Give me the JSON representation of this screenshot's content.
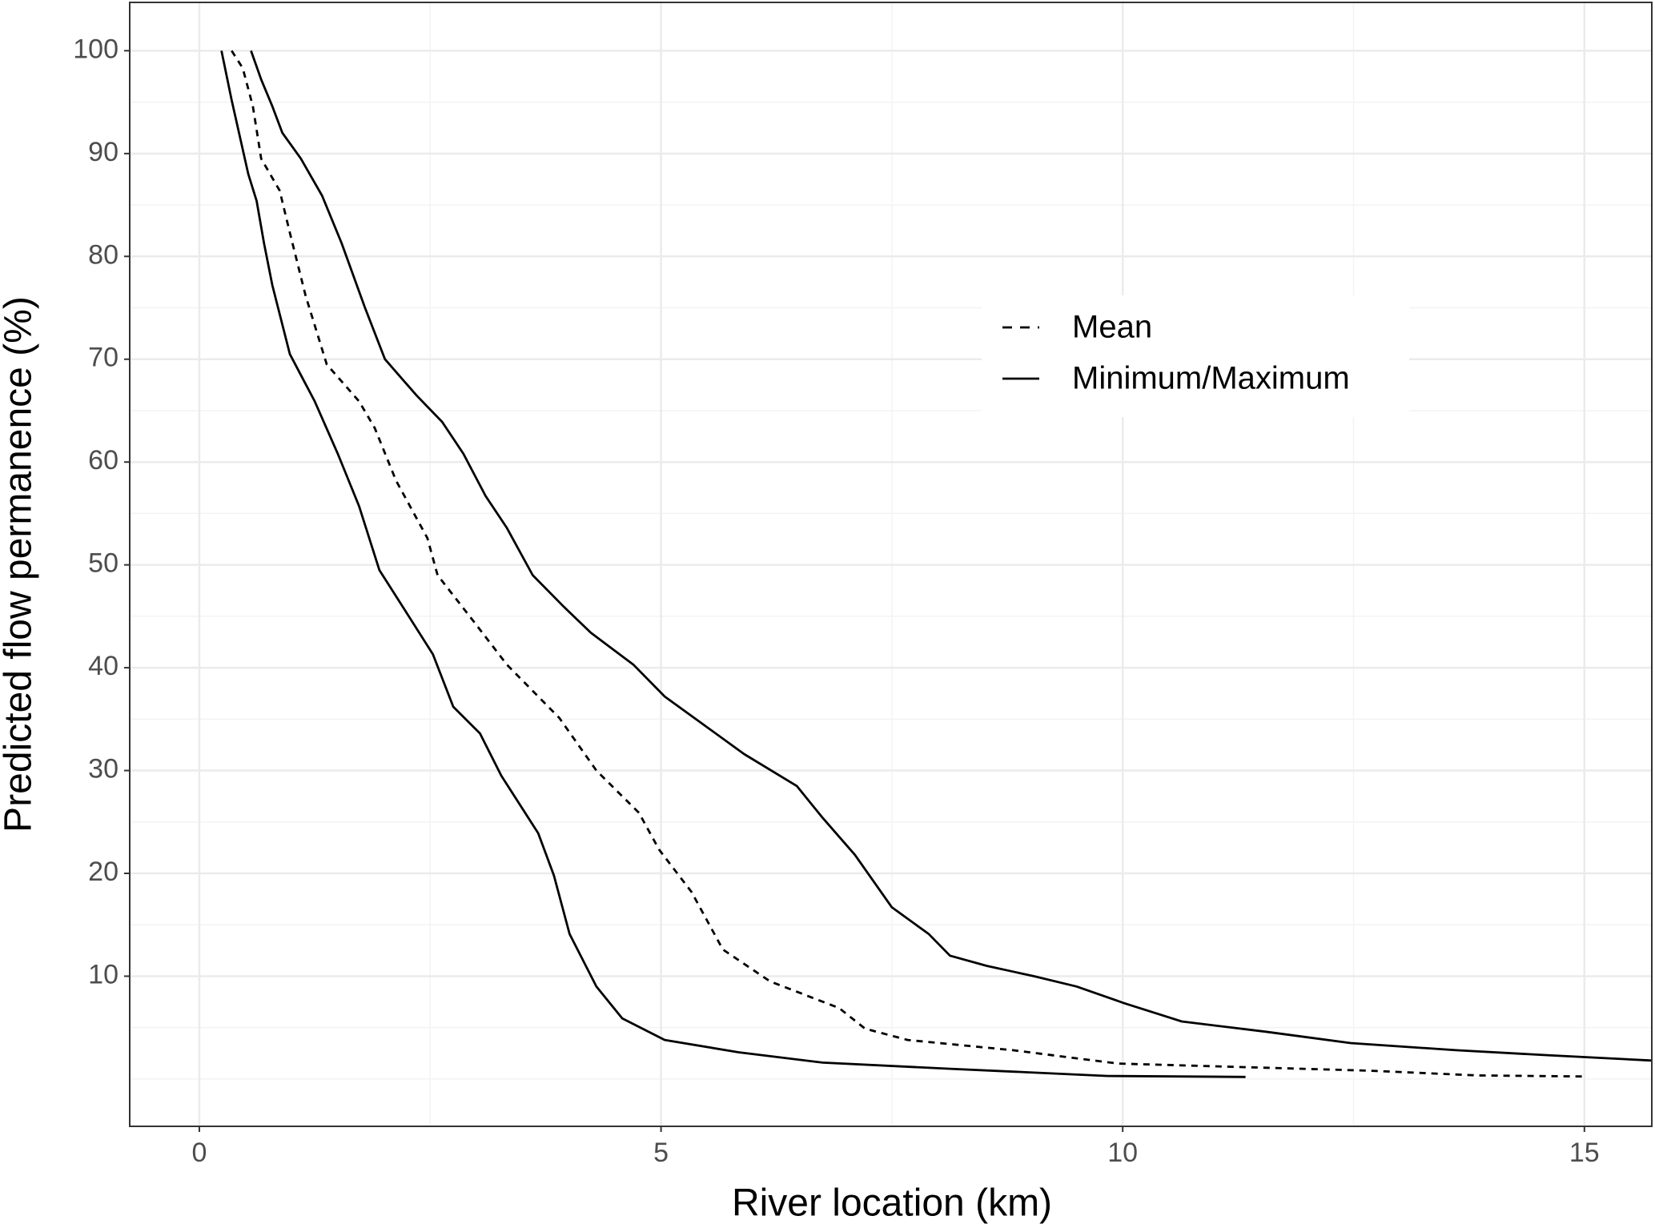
{
  "chart_data": {
    "type": "line",
    "x_label": "River location (km)",
    "y_label": "Predicted flow permanence (%)",
    "xlim": [
      -0.754,
      15.73
    ],
    "xticks": [
      0,
      5,
      10,
      15
    ],
    "xminor": [
      2.5,
      7.5,
      12.5
    ],
    "ylim": [
      -4.6,
      104.7
    ],
    "yticks": [
      10,
      20,
      30,
      40,
      50,
      60,
      70,
      80,
      90,
      100
    ],
    "yminor": [
      0,
      5,
      15,
      25,
      35,
      45,
      55,
      65,
      75,
      85,
      95
    ],
    "grid": true,
    "legend_position": "right",
    "series": [
      {
        "name": "Mean",
        "color": "#000000",
        "dashed": true,
        "x": [
          0.35,
          0.47,
          0.58,
          0.67,
          0.87,
          0.98,
          1.15,
          1.38,
          1.73,
          1.9,
          2.13,
          2.47,
          2.58,
          2.98,
          3.33,
          3.9,
          4.3,
          4.76,
          4.98,
          5.33,
          5.67,
          6.18,
          6.93,
          7.21,
          7.67,
          8.81,
          9.95,
          11.55,
          12.7,
          13.84,
          14.98
        ],
        "values": [
          100,
          98.3,
          94.6,
          89.5,
          86.4,
          82.3,
          76.2,
          69.5,
          65.9,
          63.3,
          58.2,
          52.6,
          49,
          44.4,
          40.3,
          35.1,
          30,
          25.9,
          22.3,
          18.2,
          12.6,
          9.5,
          6.9,
          4.9,
          3.8,
          2.8,
          1.5,
          1.1,
          0.8,
          0.35,
          0.25
        ]
      },
      {
        "name": "Minimum/Maximum",
        "color": "#000000",
        "dashed": false,
        "lines": [
          {
            "x": [
              0.24,
              0.35,
              0.53,
              0.62,
              0.7,
              0.79,
              0.98,
              1.25,
              1.5,
              1.73,
              1.95,
              2.24,
              2.53,
              2.75,
              3.04,
              3.27,
              3.67,
              3.84,
              4.01,
              4.3,
              4.58,
              5.04,
              5.84,
              6.75,
              8.13,
              9.84,
              11.33
            ],
            "values": [
              100,
              95.2,
              88,
              85.4,
              81.3,
              77.2,
              70.5,
              65.9,
              60.8,
              55.7,
              49.5,
              45.4,
              41.3,
              36.2,
              33.6,
              29.5,
              23.9,
              19.8,
              14.1,
              9,
              5.9,
              3.8,
              2.6,
              1.6,
              1,
              0.3,
              0.2
            ]
          },
          {
            "x": [
              0.56,
              0.67,
              0.79,
              0.9,
              1.1,
              1.33,
              1.54,
              1.79,
              2.01,
              2.35,
              2.63,
              2.86,
              3.1,
              3.33,
              3.61,
              3.95,
              4.24,
              4.7,
              5.04,
              5.44,
              5.9,
              6.47,
              6.75,
              7.1,
              7.5,
              7.9,
              8.13,
              8.53,
              9.04,
              9.5,
              10.01,
              10.64,
              11.55,
              12.47,
              13.61,
              14.64,
              15.73
            ],
            "values": [
              100,
              97.2,
              94.6,
              92,
              89.5,
              85.9,
              81.3,
              75.1,
              70,
              66.5,
              63.9,
              60.8,
              56.7,
              53.6,
              49,
              45.9,
              43.4,
              40.3,
              37.2,
              34.6,
              31.6,
              28.5,
              25.4,
              21.8,
              16.7,
              14.1,
              12,
              11,
              10,
              9,
              7.4,
              5.6,
              4.6,
              3.5,
              2.8,
              2.3,
              1.8
            ]
          }
        ]
      }
    ]
  }
}
